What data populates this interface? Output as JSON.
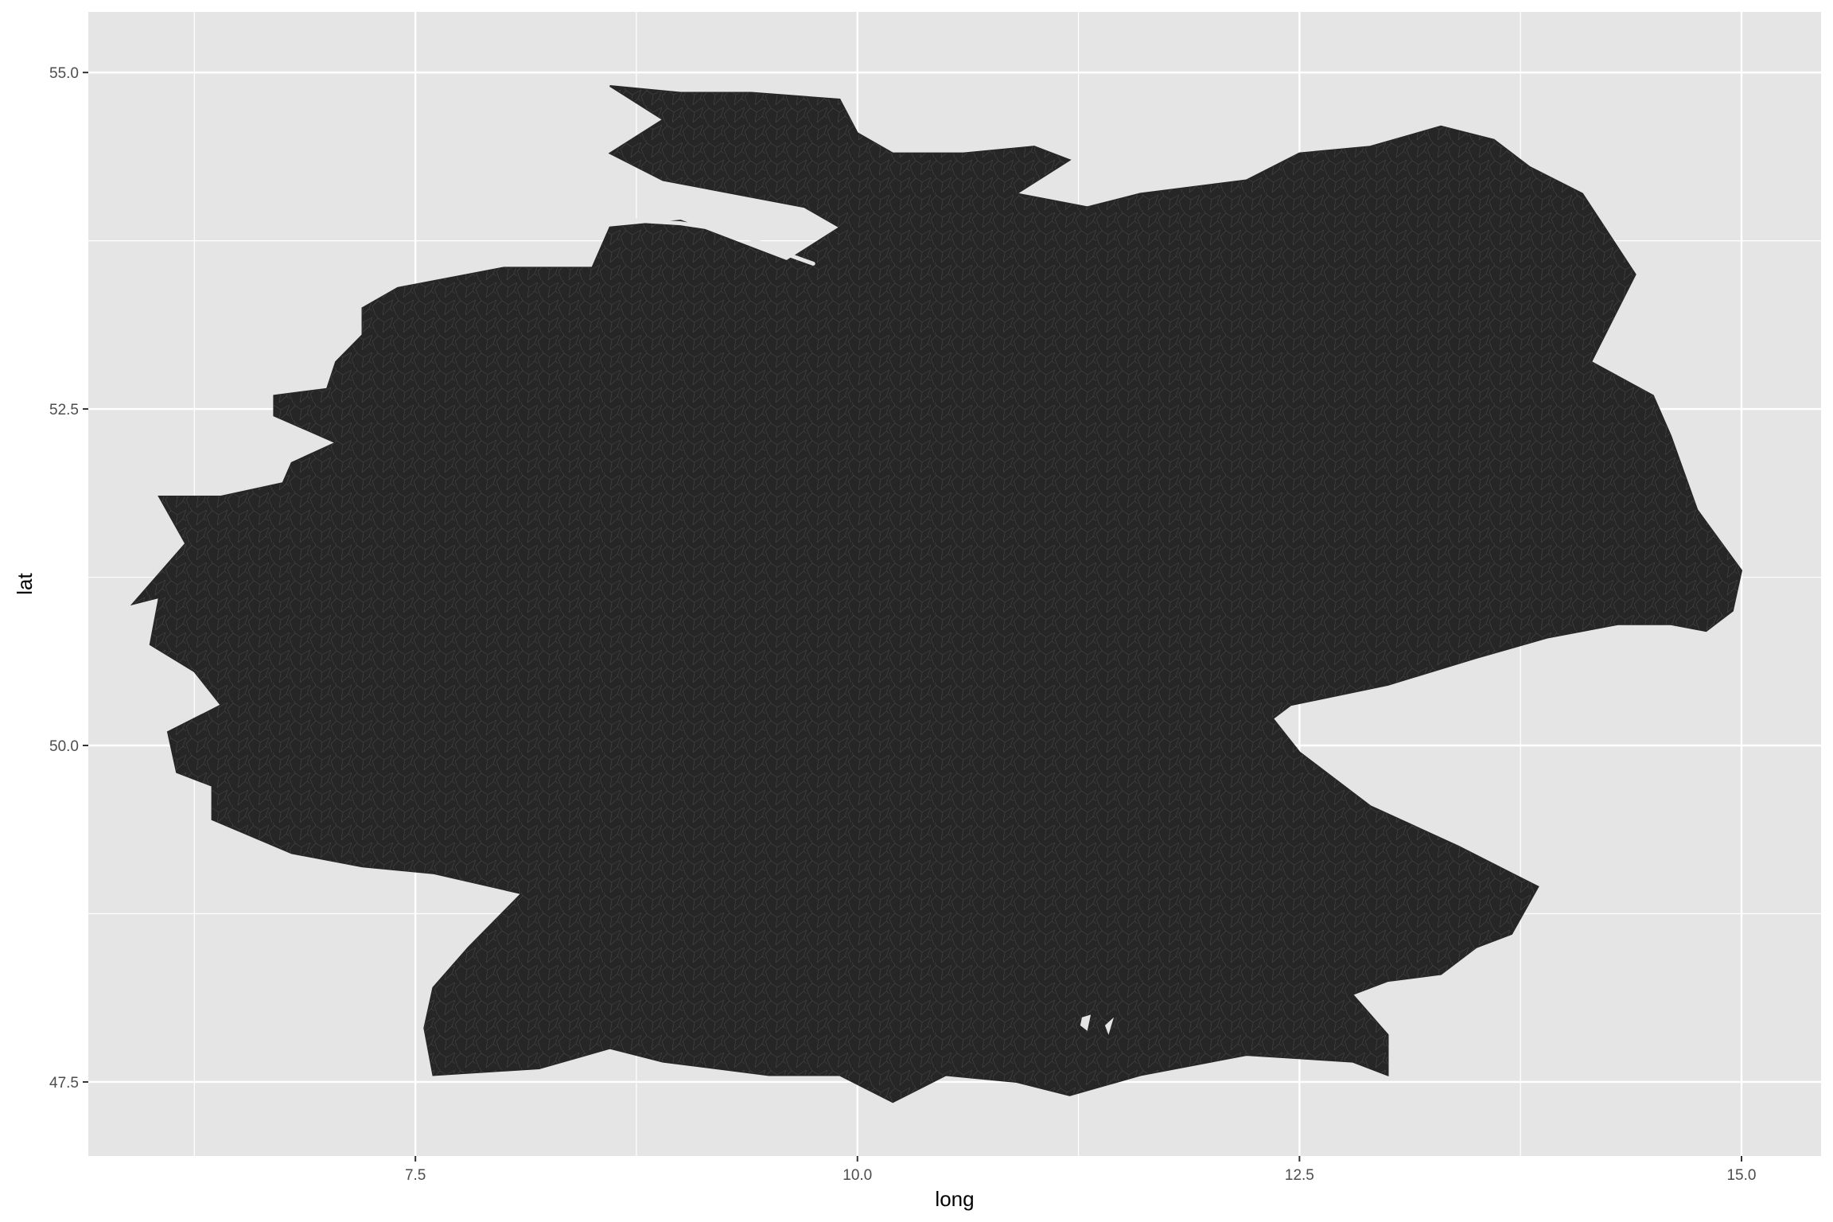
{
  "chart_data": {
    "type": "map",
    "title": "",
    "xlabel": "long",
    "ylabel": "lat",
    "xlim": [
      5.65,
      15.45
    ],
    "ylim": [
      46.95,
      55.45
    ],
    "x_ticks": [
      7.5,
      10.0,
      12.5,
      15.0
    ],
    "x_tick_labels": [
      "7.5",
      "10.0",
      "12.5",
      "15.0"
    ],
    "y_ticks": [
      47.5,
      50.0,
      52.5,
      55.0
    ],
    "y_tick_labels": [
      "47.5",
      "50.0",
      "52.5",
      "55.0"
    ],
    "x_minor": [
      6.25,
      8.75,
      11.25,
      13.75
    ],
    "y_minor": [
      48.75,
      51.25,
      53.75
    ],
    "grid": true,
    "colors": {
      "panel": "#e5e5e5",
      "grid": "#ffffff",
      "fill": "#262626",
      "borders": "#5a5a5a"
    },
    "region": "Germany (municipality polygons)",
    "outline_lonlat": [
      [
        6.05,
        51.85
      ],
      [
        6.4,
        51.85
      ],
      [
        6.75,
        51.95
      ],
      [
        6.8,
        52.1
      ],
      [
        7.05,
        52.25
      ],
      [
        6.7,
        52.45
      ],
      [
        6.7,
        52.6
      ],
      [
        7.0,
        52.65
      ],
      [
        7.05,
        52.85
      ],
      [
        7.2,
        53.05
      ],
      [
        7.2,
        53.25
      ],
      [
        7.4,
        53.4
      ],
      [
        8.0,
        53.55
      ],
      [
        8.5,
        53.55
      ],
      [
        8.6,
        53.85
      ],
      [
        9.0,
        53.9
      ],
      [
        9.6,
        53.6
      ],
      [
        9.9,
        53.85
      ],
      [
        9.7,
        54.0
      ],
      [
        8.9,
        54.2
      ],
      [
        8.6,
        54.4
      ],
      [
        8.9,
        54.65
      ],
      [
        8.6,
        54.9
      ],
      [
        9.0,
        54.85
      ],
      [
        9.4,
        54.85
      ],
      [
        9.9,
        54.8
      ],
      [
        10.0,
        54.55
      ],
      [
        10.2,
        54.4
      ],
      [
        10.6,
        54.4
      ],
      [
        11.0,
        54.45
      ],
      [
        11.2,
        54.35
      ],
      [
        10.9,
        54.1
      ],
      [
        11.3,
        54.0
      ],
      [
        11.6,
        54.1
      ],
      [
        12.2,
        54.2
      ],
      [
        12.5,
        54.4
      ],
      [
        12.9,
        54.45
      ],
      [
        13.3,
        54.6
      ],
      [
        13.6,
        54.5
      ],
      [
        13.8,
        54.3
      ],
      [
        14.1,
        54.1
      ],
      [
        14.2,
        53.9
      ],
      [
        14.4,
        53.5
      ],
      [
        14.15,
        52.85
      ],
      [
        14.5,
        52.6
      ],
      [
        14.6,
        52.3
      ],
      [
        14.75,
        51.75
      ],
      [
        15.0,
        51.3
      ],
      [
        14.95,
        51.0
      ],
      [
        14.8,
        50.85
      ],
      [
        14.6,
        50.9
      ],
      [
        14.3,
        50.9
      ],
      [
        13.9,
        50.8
      ],
      [
        13.5,
        50.65
      ],
      [
        13.0,
        50.45
      ],
      [
        12.45,
        50.3
      ],
      [
        12.35,
        50.2
      ],
      [
        12.5,
        49.95
      ],
      [
        12.9,
        49.55
      ],
      [
        13.4,
        49.25
      ],
      [
        13.85,
        48.95
      ],
      [
        13.7,
        48.6
      ],
      [
        13.5,
        48.5
      ],
      [
        13.3,
        48.3
      ],
      [
        13.0,
        48.25
      ],
      [
        12.8,
        48.15
      ],
      [
        13.0,
        47.85
      ],
      [
        13.0,
        47.55
      ],
      [
        12.8,
        47.65
      ],
      [
        12.2,
        47.7
      ],
      [
        11.6,
        47.55
      ],
      [
        11.2,
        47.4
      ],
      [
        10.9,
        47.5
      ],
      [
        10.5,
        47.55
      ],
      [
        10.2,
        47.35
      ],
      [
        9.9,
        47.55
      ],
      [
        9.5,
        47.55
      ],
      [
        8.9,
        47.65
      ],
      [
        8.6,
        47.75
      ],
      [
        8.2,
        47.6
      ],
      [
        7.6,
        47.55
      ],
      [
        7.55,
        47.9
      ],
      [
        7.6,
        48.2
      ],
      [
        7.8,
        48.5
      ],
      [
        8.1,
        48.9
      ],
      [
        7.6,
        49.05
      ],
      [
        7.2,
        49.1
      ],
      [
        6.8,
        49.2
      ],
      [
        6.35,
        49.45
      ],
      [
        6.35,
        49.7
      ],
      [
        6.15,
        49.8
      ],
      [
        6.1,
        50.1
      ],
      [
        6.4,
        50.3
      ],
      [
        6.25,
        50.55
      ],
      [
        6.0,
        50.75
      ],
      [
        6.05,
        51.1
      ],
      [
        5.9,
        51.05
      ],
      [
        6.2,
        51.5
      ],
      [
        6.05,
        51.85
      ]
    ],
    "lakes_lonlat": [
      [
        [
          11.4,
          47.92
        ],
        [
          11.45,
          47.98
        ],
        [
          11.42,
          47.85
        ],
        [
          11.4,
          47.92
        ]
      ],
      [
        [
          11.27,
          47.98
        ],
        [
          11.32,
          48.0
        ],
        [
          11.3,
          47.88
        ],
        [
          11.26,
          47.92
        ],
        [
          11.27,
          47.98
        ]
      ]
    ],
    "estuary_lonlat": [
      [
        8.75,
        53.9
      ],
      [
        9.0,
        53.88
      ],
      [
        9.3,
        53.82
      ],
      [
        9.6,
        53.65
      ],
      [
        9.75,
        53.58
      ]
    ]
  }
}
